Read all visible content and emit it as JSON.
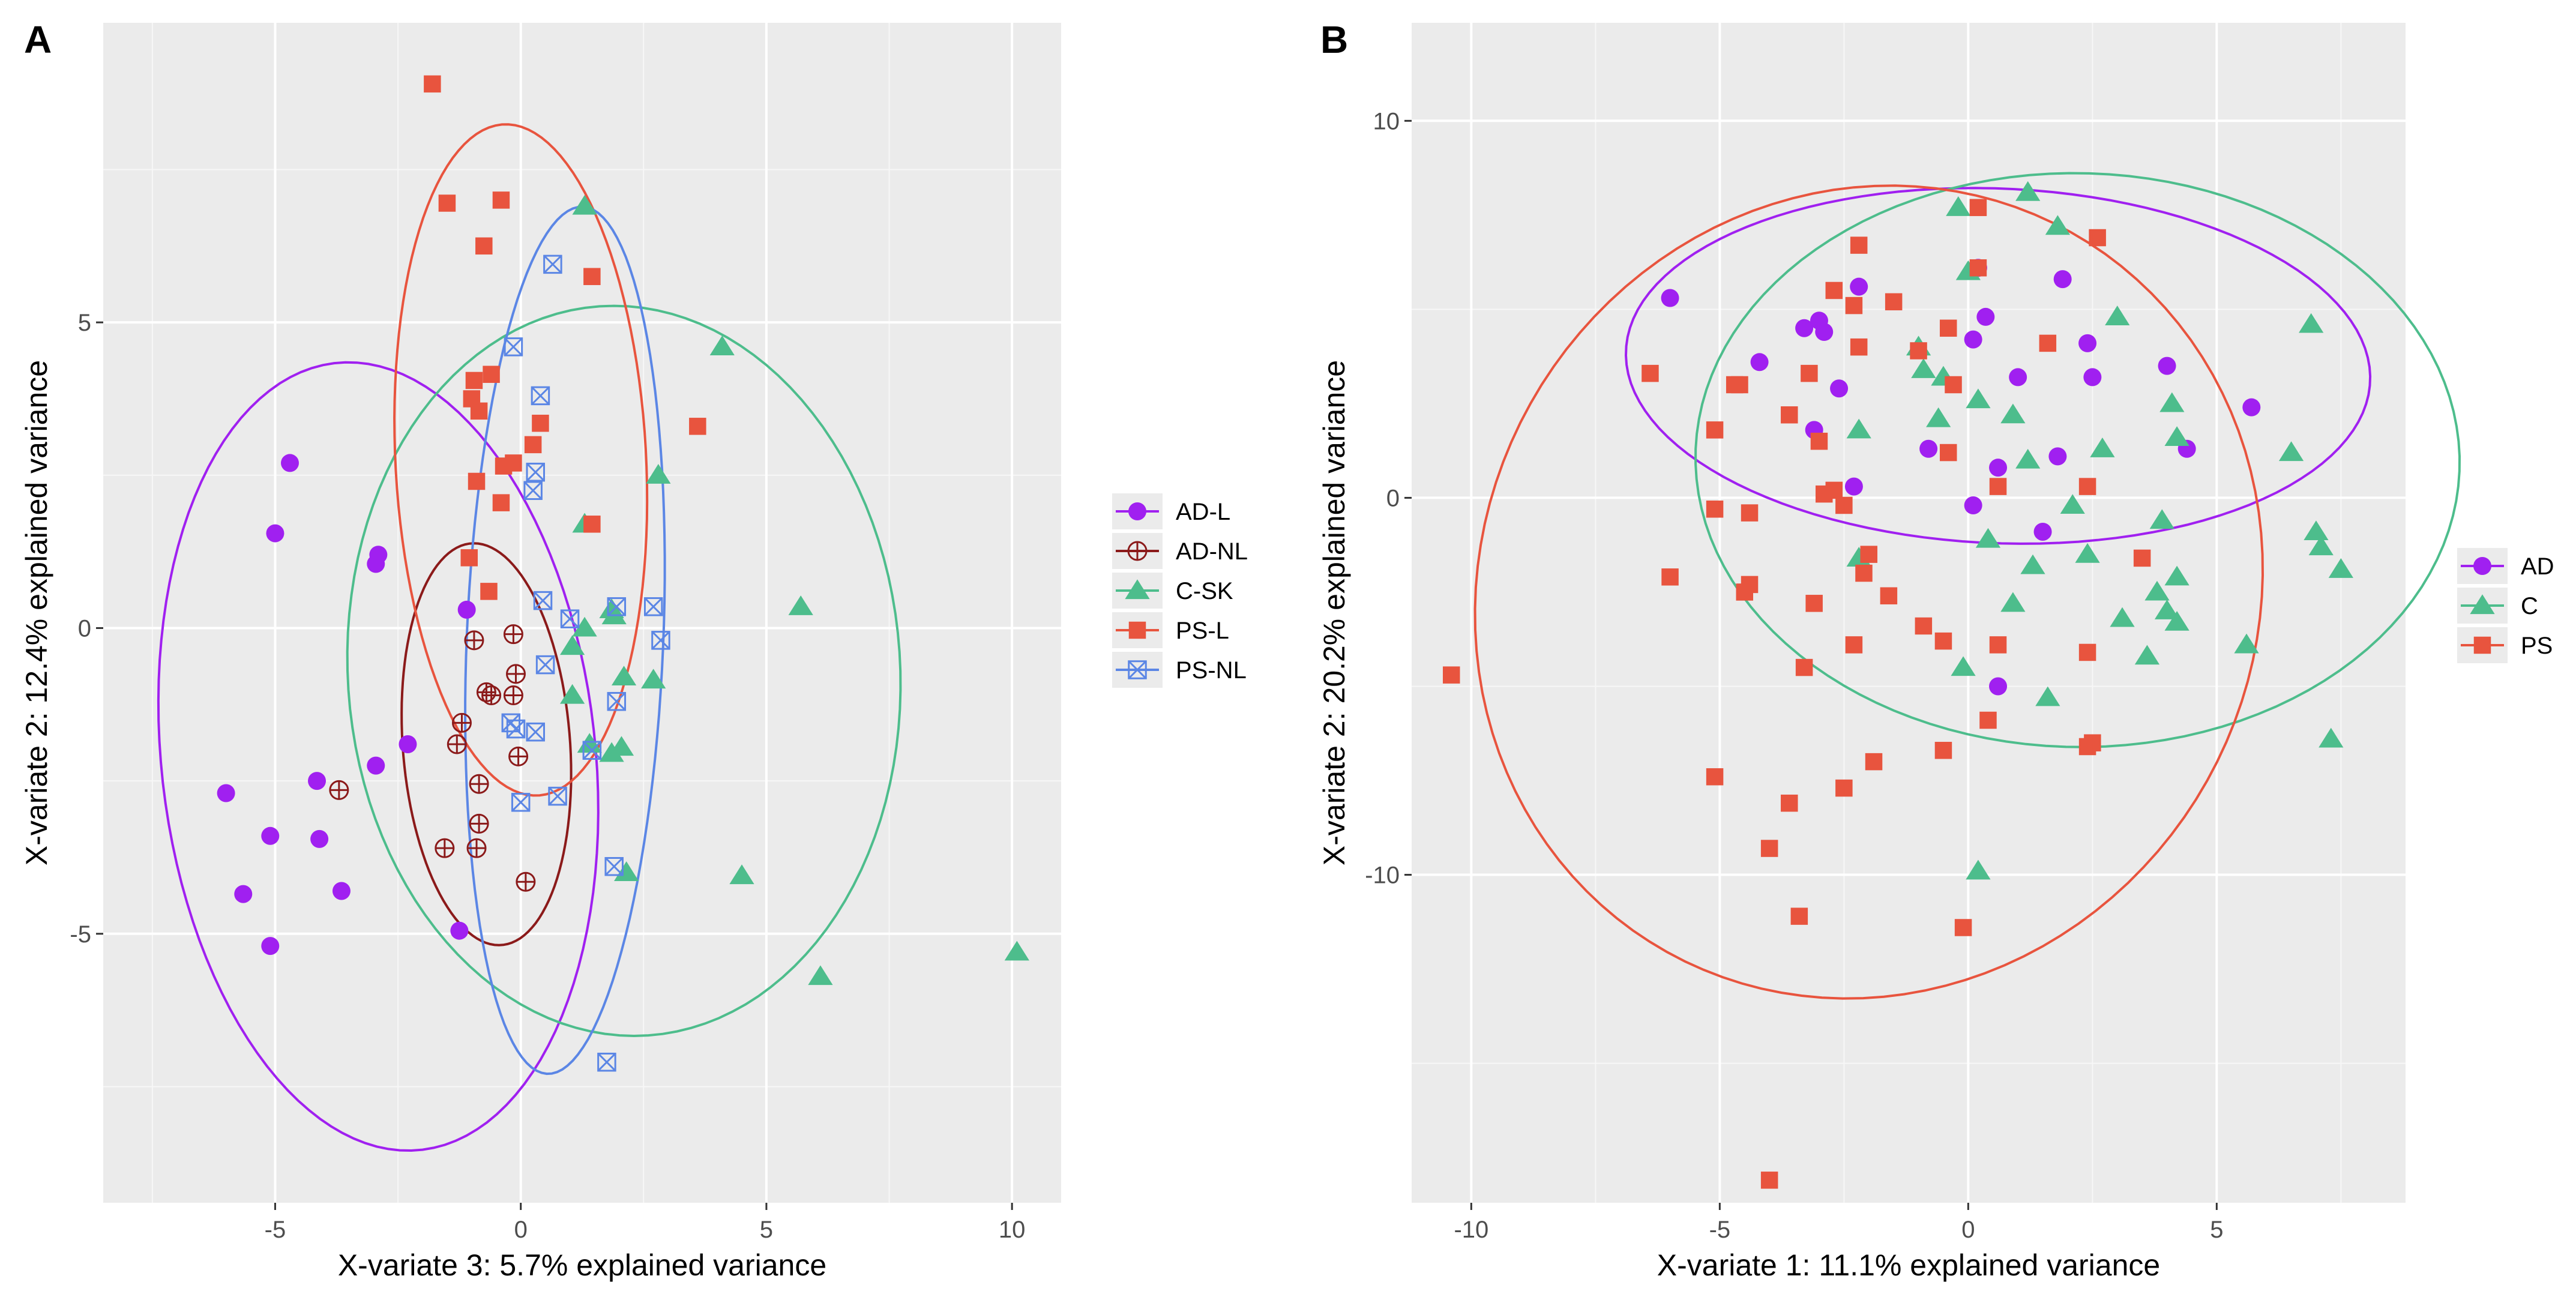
{
  "chart_data": [
    {
      "panel": "A",
      "type": "scatter",
      "xlabel": "X-variate 3: 5.7% explained variance",
      "ylabel": "X-variate 2: 12.4% explained variance",
      "xlim": [
        -8.5,
        11
      ],
      "ylim": [
        -9.4,
        9.9
      ],
      "xticks": [
        -5,
        0,
        5,
        10
      ],
      "yticks": [
        -5,
        0,
        5
      ],
      "grid": true,
      "legend": "right",
      "groups": [
        {
          "name": "AD-L",
          "color": "#a020f0",
          "shape": "circle",
          "ellipse": {
            "cx": -2.9,
            "cy": -2.1,
            "rx": 4.4,
            "ry": 6.5,
            "angle": 10
          },
          "points": [
            [
              -4.7,
              2.7
            ],
            [
              -5.0,
              1.55
            ],
            [
              -2.9,
              1.2
            ],
            [
              -2.95,
              1.05
            ],
            [
              -1.1,
              0.3
            ],
            [
              -2.3,
              -1.9
            ],
            [
              -2.95,
              -2.25
            ],
            [
              -4.15,
              -2.5
            ],
            [
              -6.0,
              -2.7
            ],
            [
              -5.1,
              -3.4
            ],
            [
              -4.1,
              -3.45
            ],
            [
              -3.65,
              -4.3
            ],
            [
              -5.65,
              -4.35
            ],
            [
              -5.1,
              -5.2
            ],
            [
              -1.25,
              -4.95
            ]
          ]
        },
        {
          "name": "AD-NL",
          "color": "#8b1a1a",
          "shape": "circle-plus",
          "ellipse": {
            "cx": -0.7,
            "cy": -1.9,
            "rx": 1.7,
            "ry": 3.3,
            "angle": 6
          },
          "points": [
            [
              -0.15,
              -0.1
            ],
            [
              -0.95,
              -0.2
            ],
            [
              -0.1,
              -0.75
            ],
            [
              -0.7,
              -1.05
            ],
            [
              -0.6,
              -1.1
            ],
            [
              -0.15,
              -1.1
            ],
            [
              -1.2,
              -1.55
            ],
            [
              -1.3,
              -1.9
            ],
            [
              -0.05,
              -2.1
            ],
            [
              -3.7,
              -2.65
            ],
            [
              -0.85,
              -2.55
            ],
            [
              -0.85,
              -3.2
            ],
            [
              -1.55,
              -3.6
            ],
            [
              -0.9,
              -3.6
            ],
            [
              0.1,
              -4.15
            ]
          ]
        },
        {
          "name": "C-SK",
          "color": "#4dbd8c",
          "shape": "triangle",
          "ellipse": {
            "cx": 2.1,
            "cy": -0.7,
            "rx": 5.6,
            "ry": 6.0,
            "angle": 16
          },
          "points": [
            [
              1.3,
              6.9
            ],
            [
              4.1,
              4.6
            ],
            [
              2.8,
              2.5
            ],
            [
              1.3,
              1.7
            ],
            [
              5.7,
              0.35
            ],
            [
              1.85,
              0.3
            ],
            [
              1.9,
              0.2
            ],
            [
              1.3,
              0.0
            ],
            [
              1.05,
              -0.3
            ],
            [
              2.1,
              -0.8
            ],
            [
              2.7,
              -0.85
            ],
            [
              1.05,
              -1.1
            ],
            [
              1.4,
              -1.9
            ],
            [
              1.85,
              -2.05
            ],
            [
              2.05,
              -1.95
            ],
            [
              2.15,
              -4.0
            ],
            [
              4.5,
              -4.05
            ],
            [
              6.1,
              -5.7
            ],
            [
              10.1,
              -5.3
            ]
          ]
        },
        {
          "name": "PS-L",
          "color": "#e8543e",
          "shape": "square",
          "ellipse": {
            "cx": 0.0,
            "cy": 2.75,
            "rx": 2.55,
            "ry": 5.5,
            "angle": 4
          },
          "points": [
            [
              -1.8,
              8.9
            ],
            [
              -1.5,
              6.95
            ],
            [
              -0.4,
              7.0
            ],
            [
              -0.75,
              6.25
            ],
            [
              1.45,
              5.75
            ],
            [
              -0.6,
              4.15
            ],
            [
              -0.95,
              4.05
            ],
            [
              -1.0,
              3.75
            ],
            [
              -0.85,
              3.55
            ],
            [
              0.4,
              3.35
            ],
            [
              3.6,
              3.3
            ],
            [
              0.25,
              3.0
            ],
            [
              -0.15,
              2.7
            ],
            [
              -0.35,
              2.65
            ],
            [
              -0.9,
              2.4
            ],
            [
              -0.4,
              2.05
            ],
            [
              1.45,
              1.7
            ],
            [
              -1.05,
              1.15
            ],
            [
              -0.65,
              0.6
            ]
          ]
        },
        {
          "name": "PS-NL",
          "color": "#5b86e5",
          "shape": "square-x",
          "ellipse": {
            "cx": 0.9,
            "cy": -0.2,
            "rx": 2.0,
            "ry": 7.1,
            "angle": -3
          },
          "points": [
            [
              0.65,
              5.95
            ],
            [
              -0.15,
              4.6
            ],
            [
              0.4,
              3.8
            ],
            [
              0.3,
              2.55
            ],
            [
              0.25,
              2.25
            ],
            [
              0.45,
              0.45
            ],
            [
              1.95,
              0.35
            ],
            [
              2.7,
              0.35
            ],
            [
              1.0,
              0.15
            ],
            [
              2.85,
              -0.2
            ],
            [
              0.5,
              -0.6
            ],
            [
              1.95,
              -1.2
            ],
            [
              -0.2,
              -1.55
            ],
            [
              -0.1,
              -1.65
            ],
            [
              0.3,
              -1.7
            ],
            [
              1.45,
              -2.0
            ],
            [
              0.75,
              -2.75
            ],
            [
              0.0,
              -2.85
            ],
            [
              1.9,
              -3.9
            ],
            [
              1.75,
              -7.1
            ]
          ]
        }
      ],
      "legend_entries": [
        "AD-L",
        "AD-NL",
        "C-SK",
        "PS-L",
        "PS-NL"
      ]
    },
    {
      "panel": "B",
      "type": "scatter",
      "xlabel": "X-variate 1: 11.1% explained variance",
      "ylabel": "X-variate 2: 20.2% explained variance",
      "xlim": [
        -11.2,
        8.8
      ],
      "ylim": [
        -18.7,
        12.6
      ],
      "xticks": [
        -10,
        -5,
        0,
        5
      ],
      "yticks": [
        -10,
        0,
        10
      ],
      "grid": true,
      "legend": "right",
      "groups": [
        {
          "name": "AD",
          "color": "#a020f0",
          "shape": "circle",
          "ellipse": {
            "cx": 0.6,
            "cy": 3.5,
            "rx": 7.5,
            "ry": 4.7,
            "angle": -4
          },
          "points": [
            [
              -6.0,
              5.3
            ],
            [
              -2.2,
              5.6
            ],
            [
              0.2,
              6.1
            ],
            [
              1.9,
              5.8
            ],
            [
              -3.0,
              4.7
            ],
            [
              -2.9,
              4.4
            ],
            [
              0.35,
              4.8
            ],
            [
              -3.3,
              4.5
            ],
            [
              0.1,
              4.2
            ],
            [
              2.4,
              4.1
            ],
            [
              -4.2,
              3.6
            ],
            [
              4.0,
              3.5
            ],
            [
              1.0,
              3.2
            ],
            [
              2.5,
              3.2
            ],
            [
              -2.6,
              2.9
            ],
            [
              5.7,
              2.4
            ],
            [
              -3.1,
              1.8
            ],
            [
              -0.8,
              1.3
            ],
            [
              4.4,
              1.3
            ],
            [
              1.8,
              1.1
            ],
            [
              0.6,
              0.8
            ],
            [
              -2.3,
              0.3
            ],
            [
              0.1,
              -0.2
            ],
            [
              1.5,
              -0.9
            ],
            [
              0.6,
              -5.0
            ]
          ]
        },
        {
          "name": "C",
          "color": "#4dbd8c",
          "shape": "triangle",
          "ellipse": {
            "cx": 2.2,
            "cy": 1.0,
            "rx": 7.7,
            "ry": 7.6,
            "angle": -20
          },
          "points": [
            [
              1.2,
              8.1
            ],
            [
              -0.2,
              7.7
            ],
            [
              1.8,
              7.2
            ],
            [
              0.0,
              6.0
            ],
            [
              3.0,
              4.8
            ],
            [
              6.9,
              4.6
            ],
            [
              -1.0,
              4.0
            ],
            [
              -0.9,
              3.4
            ],
            [
              -0.5,
              3.2
            ],
            [
              0.2,
              2.6
            ],
            [
              4.1,
              2.5
            ],
            [
              -0.6,
              2.1
            ],
            [
              0.9,
              2.2
            ],
            [
              -2.2,
              1.8
            ],
            [
              4.2,
              1.6
            ],
            [
              6.5,
              1.2
            ],
            [
              1.2,
              1.0
            ],
            [
              2.7,
              1.3
            ],
            [
              2.1,
              -0.2
            ],
            [
              3.9,
              -0.6
            ],
            [
              0.4,
              -1.1
            ],
            [
              7.0,
              -0.9
            ],
            [
              7.1,
              -1.3
            ],
            [
              2.4,
              -1.5
            ],
            [
              -2.2,
              -1.6
            ],
            [
              1.3,
              -1.8
            ],
            [
              7.5,
              -1.9
            ],
            [
              4.2,
              -2.1
            ],
            [
              3.8,
              -2.5
            ],
            [
              0.9,
              -2.8
            ],
            [
              4.0,
              -3.0
            ],
            [
              3.1,
              -3.2
            ],
            [
              4.2,
              -3.3
            ],
            [
              3.6,
              -4.2
            ],
            [
              5.6,
              -3.9
            ],
            [
              -0.1,
              -4.5
            ],
            [
              1.6,
              -5.3
            ],
            [
              7.3,
              -6.4
            ],
            [
              0.2,
              -9.9
            ]
          ]
        },
        {
          "name": "PS",
          "color": "#e8543e",
          "shape": "square",
          "ellipse": {
            "cx": -2.0,
            "cy": -2.5,
            "rx": 7.9,
            "ry": 10.8,
            "angle": -5
          },
          "points": [
            [
              0.2,
              7.7
            ],
            [
              2.6,
              6.9
            ],
            [
              -2.2,
              6.7
            ],
            [
              0.2,
              6.1
            ],
            [
              -2.7,
              5.5
            ],
            [
              -2.3,
              5.1
            ],
            [
              -1.5,
              5.2
            ],
            [
              -0.4,
              4.5
            ],
            [
              1.6,
              4.1
            ],
            [
              -2.2,
              4.0
            ],
            [
              -1.0,
              3.9
            ],
            [
              -6.4,
              3.3
            ],
            [
              -3.2,
              3.3
            ],
            [
              -4.7,
              3.0
            ],
            [
              -4.6,
              3.0
            ],
            [
              -0.3,
              3.0
            ],
            [
              -3.6,
              2.2
            ],
            [
              -5.1,
              1.8
            ],
            [
              -3.0,
              1.5
            ],
            [
              -0.4,
              1.2
            ],
            [
              0.6,
              0.3
            ],
            [
              -2.7,
              0.2
            ],
            [
              2.4,
              0.3
            ],
            [
              -2.9,
              0.1
            ],
            [
              -2.5,
              -0.2
            ],
            [
              -5.1,
              -0.3
            ],
            [
              -4.4,
              -0.4
            ],
            [
              3.5,
              -1.6
            ],
            [
              -2.0,
              -1.5
            ],
            [
              -2.1,
              -2.0
            ],
            [
              -6.0,
              -2.1
            ],
            [
              -4.4,
              -2.3
            ],
            [
              -4.5,
              -2.5
            ],
            [
              -1.6,
              -2.6
            ],
            [
              -3.1,
              -2.8
            ],
            [
              -0.9,
              -3.4
            ],
            [
              -2.3,
              -3.9
            ],
            [
              0.6,
              -3.9
            ],
            [
              -0.5,
              -3.8
            ],
            [
              2.4,
              -4.1
            ],
            [
              -3.3,
              -4.5
            ],
            [
              -10.4,
              -4.7
            ],
            [
              0.4,
              -5.9
            ],
            [
              2.5,
              -6.5
            ],
            [
              2.4,
              -6.6
            ],
            [
              -0.5,
              -6.7
            ],
            [
              -1.9,
              -7.0
            ],
            [
              -5.1,
              -7.4
            ],
            [
              -2.5,
              -7.7
            ],
            [
              -3.6,
              -8.1
            ],
            [
              -4.0,
              -9.3
            ],
            [
              -3.4,
              -11.1
            ],
            [
              -0.1,
              -11.4
            ],
            [
              -4.0,
              -18.1
            ]
          ]
        }
      ],
      "legend_entries": [
        "AD",
        "C",
        "PS"
      ]
    }
  ]
}
